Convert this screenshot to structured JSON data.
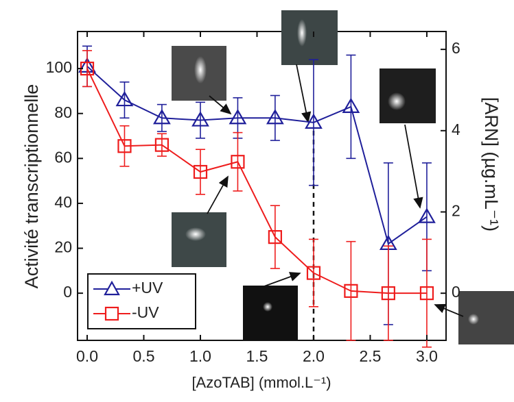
{
  "chart_data": {
    "type": "line",
    "xlabel": "[AzoTAB] (mmol.L⁻¹)",
    "ylabel": "Activité transcriptionnelle",
    "y2label": "[ARN] (µg.mL⁻¹)",
    "x": [
      0,
      0.33,
      0.66,
      1.0,
      1.33,
      1.66,
      2.0,
      2.33,
      2.66,
      3.0
    ],
    "series": [
      {
        "name": "+UV",
        "color": "#1f1f9a",
        "marker": "triangle",
        "values": [
          101,
          86,
          78,
          77,
          78,
          78,
          76,
          83,
          22,
          34
        ],
        "errors": [
          9,
          8,
          6,
          8,
          9,
          10,
          28,
          23,
          36,
          24
        ]
      },
      {
        "name": "-UV",
        "color": "#ee1c1c",
        "marker": "square",
        "values": [
          100,
          65.5,
          66,
          54,
          58.5,
          25,
          9,
          1,
          0,
          0
        ],
        "errors": [
          8,
          9,
          5,
          10,
          13,
          14,
          15,
          22,
          21,
          24
        ]
      }
    ],
    "xlim": [
      -0.085,
      3.17
    ],
    "xticks": [
      {
        "value": 0,
        "label": "0.0"
      },
      0.5,
      {
        "value": 1,
        "label": "1.0"
      },
      1.5,
      {
        "value": 2,
        "label": "2.0"
      },
      2.5,
      {
        "value": 3,
        "label": "3.0"
      }
    ],
    "ylim": [
      -21,
      116.5
    ],
    "yticks": [
      0,
      20,
      40,
      60,
      80,
      100
    ],
    "y2lim": [
      -1.16,
      6.44
    ],
    "y2ticks": [
      0,
      2,
      4,
      6
    ],
    "legend": "lower left"
  }
}
